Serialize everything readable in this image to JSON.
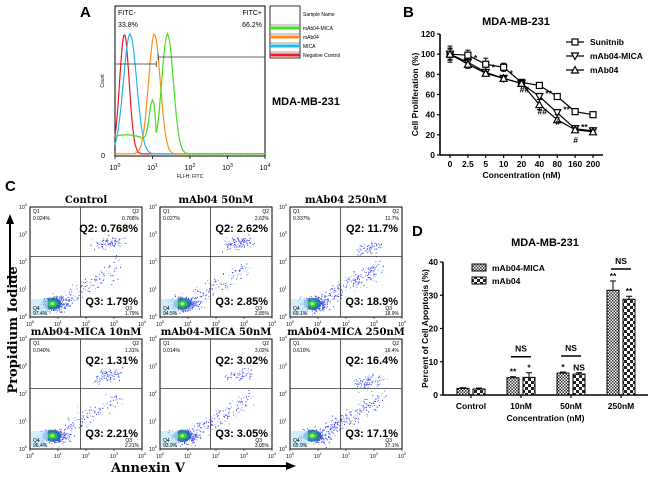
{
  "panels": {
    "A": {
      "letter": "A"
    },
    "B": {
      "letter": "B"
    },
    "C": {
      "letter": "C"
    },
    "D": {
      "letter": "D"
    }
  },
  "chart_data": [
    {
      "id": "A",
      "type": "line",
      "title": "MDA-MB-231",
      "xlabel": "FLI-H: FITC",
      "ylabel": "Count",
      "xscale": "log",
      "xticks": [
        "10^0",
        "10^1",
        "10^2",
        "10^3",
        "10^4"
      ],
      "yticks": [
        "0"
      ],
      "gates": [
        {
          "label": "FITC-",
          "value": "33.8%"
        },
        {
          "label": "FITC+",
          "value": "66.2%"
        }
      ],
      "legend": {
        "header": "Sample Name",
        "position": "right",
        "entries": [
          {
            "name": "mAb04-MICA",
            "color": "#44dd22"
          },
          {
            "name": "mAb04",
            "color": "#ff8c1a"
          },
          {
            "name": "MICA",
            "color": "#22b8ee"
          },
          {
            "name": "Negative Control",
            "color": "#ee1c24"
          }
        ]
      },
      "series": [
        {
          "name": "Negative Control",
          "color": "#ee1c24",
          "peak_log10": 0.25
        },
        {
          "name": "MICA",
          "color": "#22b8ee",
          "peak_log10": 0.4
        },
        {
          "name": "mAb04",
          "color": "#ff8c1a",
          "peak_log10": 1.05
        },
        {
          "name": "mAb04-MICA",
          "color": "#44dd22",
          "peak_log10": 1.4
        }
      ]
    },
    {
      "id": "B",
      "type": "line",
      "title": "MDA-MB-231",
      "xlabel": "Concentration (nM)",
      "ylabel": "Cell Proliferation (%)",
      "categories": [
        "0",
        "2.5",
        "5",
        "10",
        "20",
        "40",
        "80",
        "160",
        "200"
      ],
      "ylim": [
        0,
        120
      ],
      "yticks": [
        0,
        20,
        40,
        60,
        80,
        100,
        120
      ],
      "legend_position": "top-right",
      "series": [
        {
          "name": "Sunitnib",
          "marker": "square",
          "values": [
            100,
            99,
            90,
            87,
            72,
            69,
            58,
            43,
            40
          ],
          "errors": [
            5,
            5,
            6,
            4,
            2,
            2,
            1,
            2,
            2
          ]
        },
        {
          "name": "mAb04-MICA",
          "marker": "triangle-down",
          "values": [
            100,
            92,
            82,
            76,
            71,
            58,
            42,
            26,
            24
          ],
          "errors": [
            6,
            3,
            2,
            2,
            2,
            3,
            2,
            3,
            3
          ]
        },
        {
          "name": "mAb04",
          "marker": "triangle-up",
          "values": [
            100,
            90,
            81,
            76,
            71,
            50,
            35,
            25,
            23
          ],
          "errors": [
            8,
            4,
            2,
            2,
            2,
            5,
            2,
            2,
            2
          ]
        }
      ],
      "annotations": [
        {
          "category": "2.5",
          "text": "*"
        },
        {
          "category": "5",
          "text": "*"
        },
        {
          "category": "10",
          "text": "*"
        },
        {
          "category": "20",
          "text": "##"
        },
        {
          "category": "40",
          "text": "**"
        },
        {
          "category": "40",
          "text": "##"
        },
        {
          "category": "80",
          "text": "**"
        },
        {
          "category": "80",
          "text": "#"
        },
        {
          "category": "160",
          "text": "**"
        },
        {
          "category": "160",
          "text": "#"
        }
      ]
    },
    {
      "id": "C",
      "type": "scatter",
      "xlabel": "Annexin V",
      "ylabel": "Propidium Iodide",
      "xticks": [
        "10^0",
        "10^1",
        "10^2",
        "10^3",
        "10^4"
      ],
      "yticks": [
        "10^0",
        "10^1",
        "10^2",
        "10^3",
        "10^4"
      ],
      "plots": [
        {
          "title": "Control",
          "Q1": "0.024%",
          "Q2": "0.768%",
          "Q3": "1.79%",
          "Q4": "97.4%",
          "big_q2": "Q2: 0.768%",
          "big_q3": "Q3: 1.79%",
          "spread": 0.2
        },
        {
          "title": "mAb04  50nM",
          "Q1": "0.027%",
          "Q2": "2.62%",
          "Q3": "2.85%",
          "Q4": "94.5%",
          "big_q2": "Q2: 2.62%",
          "big_q3": "Q3: 2.85%",
          "spread": 0.35
        },
        {
          "title": "mAb04  250nM",
          "Q1": "0.337%",
          "Q2": "11.7%",
          "Q3": "18.9%",
          "Q4": "69.1%",
          "big_q2": "Q2: 11.7%",
          "big_q3": "Q3: 18.9%",
          "spread": 1
        },
        {
          "title": "mAb04-MICA  10nM",
          "Q1": "0.040%",
          "Q2": "1.31%",
          "Q3": "2.21%",
          "Q4": "96.4%",
          "big_q2": "Q2: 1.31%",
          "big_q3": "Q3: 2.21%",
          "spread": 0.3
        },
        {
          "title": "mAb04-MICA  50nM",
          "Q1": "0.014%",
          "Q2": "3.02%",
          "Q3": "3.05%",
          "Q4": "93.9%",
          "big_q2": "Q2: 3.02%",
          "big_q3": "Q3: 3.05%",
          "spread": 0.4
        },
        {
          "title": "mAb04-MICA  250nM",
          "Q1": "0.610%",
          "Q2": "16.4%",
          "Q3": "17.1%",
          "Q4": "65.9%",
          "big_q2": "Q2: 16.4%",
          "big_q3": "Q3: 17.1%",
          "spread": 1
        }
      ]
    },
    {
      "id": "D",
      "type": "bar",
      "title": "MDA-MB-231",
      "xlabel": "Concentration (nM)",
      "ylabel": "Percent of Cell Apoptosis (%)",
      "categories": [
        "Control",
        "10nM",
        "50nM",
        "250nM"
      ],
      "ylim": [
        0,
        40
      ],
      "yticks": [
        0,
        10,
        20,
        30,
        40
      ],
      "legend_position": "top-left",
      "series": [
        {
          "name": "mAb04-MICA",
          "pattern": "fine-grid",
          "values": [
            2.0,
            5.2,
            6.6,
            31.5
          ],
          "errors": [
            0.2,
            0.3,
            0.3,
            2.8
          ],
          "sig": [
            "",
            "**",
            "*",
            "**"
          ]
        },
        {
          "name": "mAb04",
          "pattern": "checker",
          "values": [
            1.8,
            5.3,
            6.3,
            28.8
          ],
          "errors": [
            0.3,
            1.4,
            0.4,
            0.9
          ],
          "sig": [
            "",
            "*",
            "NS",
            "**"
          ]
        }
      ],
      "group_annotations": [
        {
          "category": "10nM",
          "text": "NS"
        },
        {
          "category": "50nM",
          "text": "NS"
        },
        {
          "category": "250nM",
          "text": "NS"
        }
      ]
    }
  ]
}
